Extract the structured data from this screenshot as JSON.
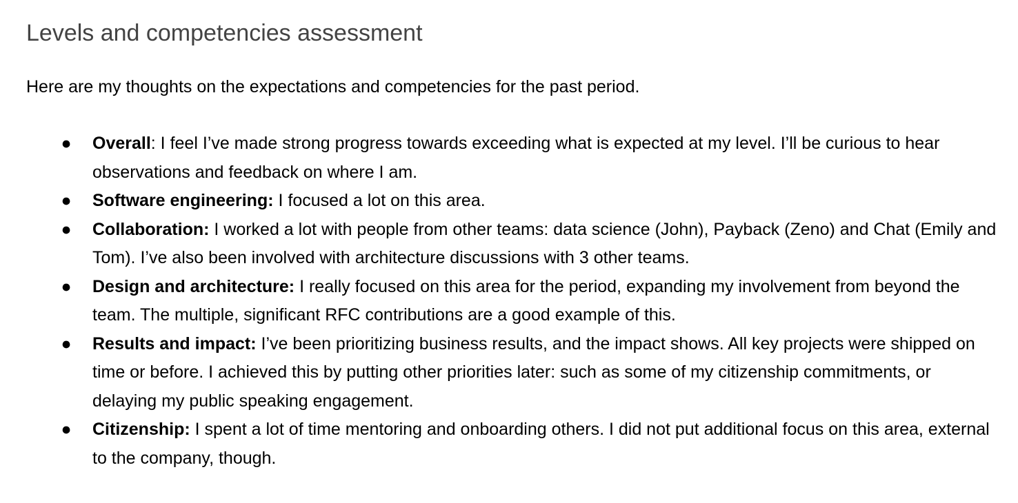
{
  "document": {
    "title": "Levels and competencies assessment",
    "intro": "Here are my thoughts on the expectations and competencies for the past period.",
    "bullet_glyph": "●",
    "items": [
      {
        "term": "Overall",
        "text": ": I feel I’ve made strong progress towards exceeding what is expected at my level. I’ll be curious to hear observations and feedback on where I am."
      },
      {
        "term": "Software engineering:",
        "text": " I focused a lot on this area."
      },
      {
        "term": "Collaboration:",
        "text": " I worked a lot with people from other teams: data science (John), Payback (Zeno) and Chat (Emily and Tom). I’ve also been involved with architecture discussions with 3 other teams."
      },
      {
        "term": "Design and architecture:",
        "text": " I really focused on this area for the period, expanding my involvement from beyond the team. The multiple, significant RFC contributions are a good example of this."
      },
      {
        "term": "Results and impact:",
        "text": " I’ve been prioritizing business results, and the impact shows. All key projects were shipped on time or before. I achieved this by putting other priorities later: such as some of my citizenship commitments, or delaying my public speaking engagement."
      },
      {
        "term": "Citizenship:",
        "text": " I spent a lot of time mentoring and onboarding others. I did not put additional focus on this area, external to the company, though."
      }
    ]
  }
}
